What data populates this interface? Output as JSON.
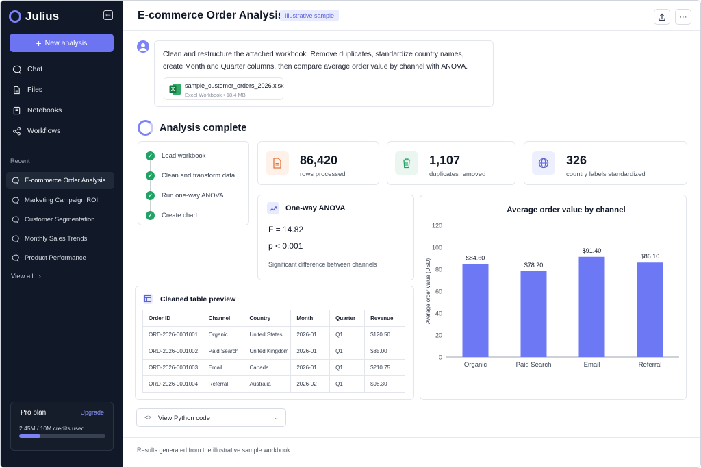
{
  "app": {
    "name": "Julius"
  },
  "sidebar": {
    "new_button": "New analysis",
    "nav": [
      {
        "label": "Chat",
        "icon": "chat-icon"
      },
      {
        "label": "Files",
        "icon": "file-icon"
      },
      {
        "label": "Notebooks",
        "icon": "notebook-icon"
      },
      {
        "label": "Workflows",
        "icon": "workflow-icon"
      }
    ],
    "recent_label": "Recent",
    "recent": [
      "E-commerce Order Analysis",
      "Marketing Campaign ROI",
      "Customer Segmentation",
      "Monthly Sales Trends",
      "Product Performance"
    ],
    "view_all": "View all",
    "plan": {
      "title": "Pro plan",
      "upgrade": "Upgrade",
      "usage": "2.45M / 10M credits used",
      "usage_fraction": 0.245
    }
  },
  "header": {
    "title": "E-commerce Order Analysis",
    "badge": "Illustrative sample"
  },
  "message": {
    "text": "Clean and restructure the attached workbook. Remove duplicates, standardize country names, create Month and Quarter columns, then compare average order value by channel with ANOVA.",
    "file": {
      "name": "sample_customer_orders_2026.xlsx",
      "meta": "Excel Workbook • 18.4 MB"
    }
  },
  "status": {
    "title": "Analysis complete"
  },
  "steps": [
    "Load workbook",
    "Clean and transform data",
    "Run one-way ANOVA",
    "Create chart"
  ],
  "stats": [
    {
      "value": "86,420",
      "label": "rows processed",
      "icon": "document-icon"
    },
    {
      "value": "1,107",
      "label": "duplicates removed",
      "icon": "trash-icon"
    },
    {
      "value": "326",
      "label": "country labels standardized",
      "icon": "globe-icon"
    }
  ],
  "anova": {
    "title": "One-way ANOVA",
    "f": "F = 14.82",
    "p": "p < 0.001",
    "note": "Significant difference between channels"
  },
  "table": {
    "title": "Cleaned table preview",
    "columns": [
      "Order ID",
      "Channel",
      "Country",
      "Month",
      "Quarter",
      "Revenue"
    ],
    "rows": [
      [
        "ORD-2026-0001001",
        "Organic",
        "United States",
        "2026-01",
        "Q1",
        "$120.50"
      ],
      [
        "ORD-2026-0001002",
        "Paid Search",
        "United Kingdom",
        "2026-01",
        "Q1",
        "$85.00"
      ],
      [
        "ORD-2026-0001003",
        "Email",
        "Canada",
        "2026-01",
        "Q1",
        "$210.75"
      ],
      [
        "ORD-2026-0001004",
        "Referral",
        "Australia",
        "2026-02",
        "Q1",
        "$98.30"
      ]
    ]
  },
  "chart_data": {
    "type": "bar",
    "title": "Average order value by channel",
    "categories": [
      "Organic",
      "Paid Search",
      "Email",
      "Referral"
    ],
    "values": [
      84.6,
      78.2,
      91.4,
      86.1
    ],
    "value_labels": [
      "$84.60",
      "$78.20",
      "$91.40",
      "$86.10"
    ],
    "xlabel": "",
    "ylabel": "Average order value (USD)",
    "ylim": [
      0,
      120
    ],
    "yticks": [
      0,
      20,
      40,
      60,
      80,
      100,
      120
    ],
    "grid": false,
    "bar_color": "#6d78f5"
  },
  "code_button": {
    "label": "View Python code"
  },
  "footer": {
    "text": "Results generated from the illustrative sample workbook."
  },
  "colors": {
    "accent": "#6d74f2",
    "sidebar_bg": "#111827",
    "success": "#21a366"
  }
}
